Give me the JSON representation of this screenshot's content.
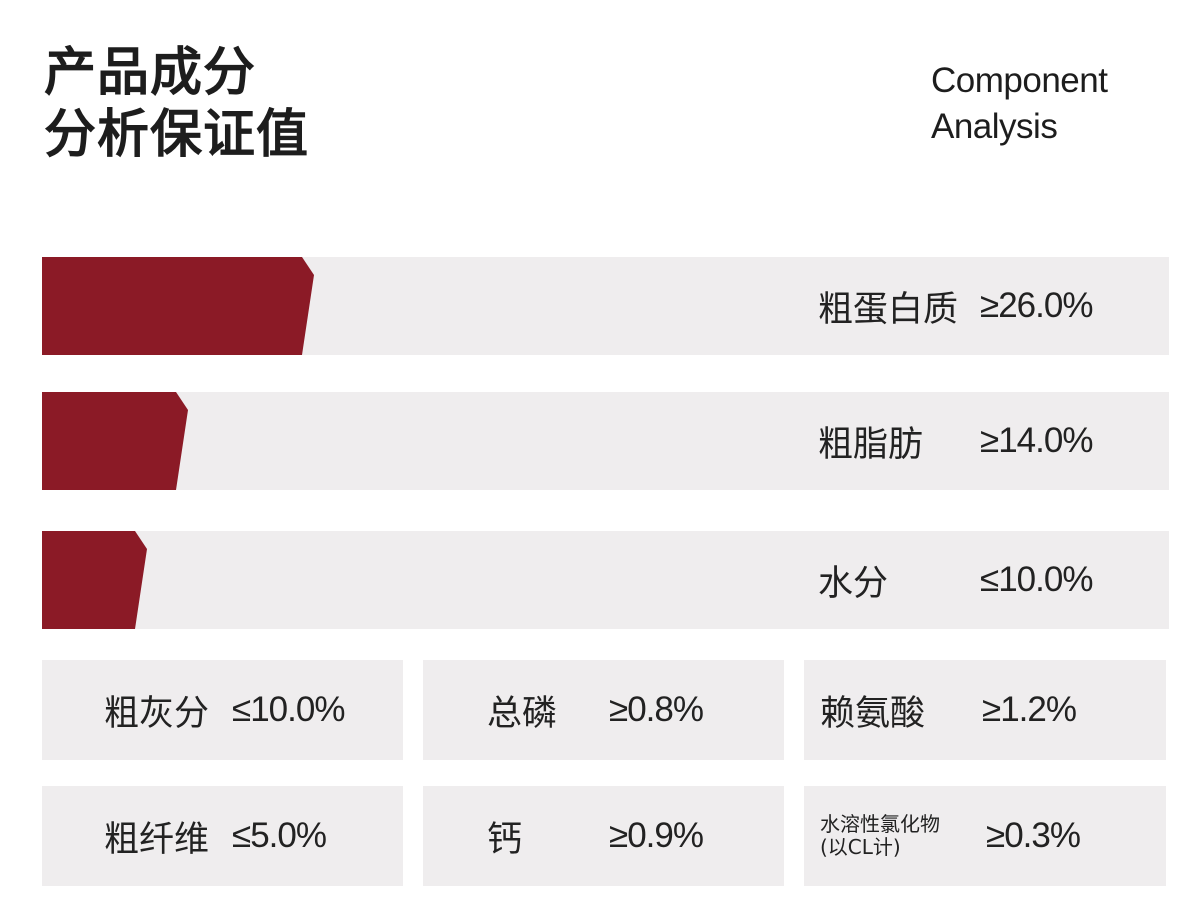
{
  "title": {
    "cn_line1": "产品成分",
    "cn_line2": "分析保证值",
    "en_line1": "Component",
    "en_line2": "Analysis"
  },
  "bars": [
    {
      "name": "粗蛋白质",
      "value": "≥26.0%",
      "amount": 26.0
    },
    {
      "name": "粗脂肪",
      "value": "≥14.0%",
      "amount": 14.0
    },
    {
      "name": "水分",
      "value": "≤10.0%",
      "amount": 10.0
    }
  ],
  "cells": [
    {
      "name": "粗灰分",
      "value": "≤10.0%"
    },
    {
      "name": "总磷",
      "value": "≥0.8%"
    },
    {
      "name": "赖氨酸",
      "value": "≥1.2%"
    },
    {
      "name": "粗纤维",
      "value": "≤5.0%"
    },
    {
      "name": "钙",
      "value": "≥0.9%"
    },
    {
      "name_line1": "水溶性氯化物",
      "name_line2": "(以CL计)",
      "value": "≥0.3%"
    }
  ],
  "colors": {
    "accent": "#8b1a26",
    "panel": "#efedee",
    "text": "#222222"
  }
}
